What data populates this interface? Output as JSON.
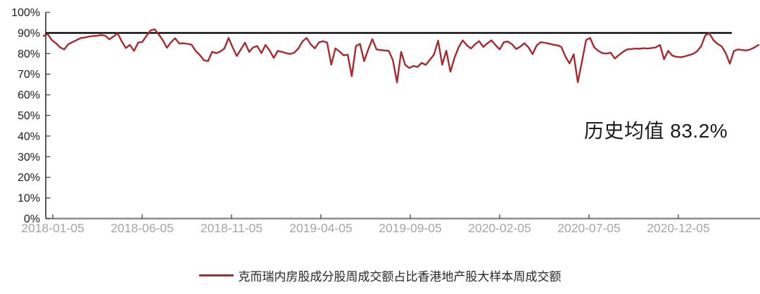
{
  "chart_data": {
    "type": "line",
    "title": "",
    "xlabel": "",
    "ylabel": "",
    "ylim": [
      0,
      100
    ],
    "grid": false,
    "legend_position": "bottom",
    "y_tick_labels": [
      "0%",
      "10%",
      "20%",
      "30%",
      "40%",
      "50%",
      "60%",
      "70%",
      "80%",
      "90%",
      "100%"
    ],
    "x_tick_labels": [
      "2018-01-05",
      "2018-06-05",
      "2018-11-05",
      "2019-04-05",
      "2019-09-05",
      "2020-02-05",
      "2020-07-05",
      "2020-12-05"
    ],
    "x_frequency": "weekly",
    "reference_line": {
      "value": 90,
      "color": "#000000"
    },
    "annotation": {
      "text": "历史均值 83.2%",
      "mean_value": 83.2
    },
    "series": [
      {
        "name": "克而瑞内房股成分股周成交额占比香港地产股大样本周成交额",
        "color": "#A8282E",
        "unit": "%",
        "values": [
          88.5,
          89.5,
          86.5,
          85.0,
          83.0,
          82.0,
          84.5,
          85.5,
          86.5,
          87.5,
          87.8,
          88.2,
          88.5,
          88.6,
          89.0,
          88.6,
          86.9,
          88.3,
          89.8,
          86.0,
          82.7,
          84.2,
          81.3,
          85.3,
          85.6,
          88.5,
          91.2,
          91.8,
          89.3,
          86.5,
          82.8,
          85.5,
          87.4,
          84.9,
          85.0,
          84.7,
          84.3,
          81.3,
          79.3,
          76.8,
          76.3,
          80.8,
          80.2,
          81.0,
          82.5,
          87.6,
          83.0,
          78.8,
          82.0,
          85.3,
          80.8,
          83.0,
          83.6,
          80.2,
          84.2,
          81.5,
          77.9,
          81.3,
          80.8,
          80.2,
          79.8,
          80.4,
          82.5,
          85.9,
          87.6,
          84.5,
          82.5,
          85.4,
          86.0,
          85.3,
          74.6,
          82.5,
          81.0,
          79.1,
          79.5,
          69.0,
          83.6,
          84.7,
          76.3,
          82.0,
          87.0,
          82.0,
          81.7,
          81.5,
          81.3,
          76.8,
          66.0,
          80.8,
          74.5,
          73.0,
          74.0,
          73.5,
          75.5,
          74.5,
          77.0,
          79.5,
          86.3,
          74.6,
          81.4,
          71.2,
          78.0,
          83.0,
          86.4,
          84.0,
          82.4,
          84.5,
          86.0,
          83.2,
          85.0,
          86.4,
          84.0,
          82.0,
          85.5,
          85.8,
          84.5,
          82.2,
          83.3,
          85.0,
          83.0,
          79.7,
          84.0,
          85.5,
          85.2,
          84.8,
          84.3,
          84.0,
          83.2,
          78.5,
          75.2,
          79.7,
          66.1,
          76.0,
          86.5,
          87.6,
          83.0,
          81.3,
          80.2,
          80.0,
          80.4,
          77.6,
          79.3,
          80.8,
          82.0,
          82.2,
          82.4,
          82.3,
          82.6,
          82.4,
          82.7,
          83.0,
          84.2,
          77.2,
          81.3,
          79.0,
          78.4,
          78.2,
          78.6,
          79.2,
          79.8,
          81.0,
          83.5,
          88.7,
          89.9,
          86.5,
          84.7,
          83.5,
          80.2,
          75.1,
          81.3,
          82.0,
          81.7,
          81.5,
          82.0,
          83.0,
          84.2
        ]
      }
    ],
    "colors": {
      "series_line": "#A8282E",
      "reference_line": "#000000",
      "x_axis_line": "#7F7F7F",
      "y_axis_line": "#000000",
      "tick_mark": "#404040",
      "y_tick_label": "#1a1a1a",
      "x_tick_label": "#A6A6A6",
      "legend_text": "#262626",
      "annotation_text": "#1a1a1a",
      "background": "#FFFFFF"
    }
  }
}
